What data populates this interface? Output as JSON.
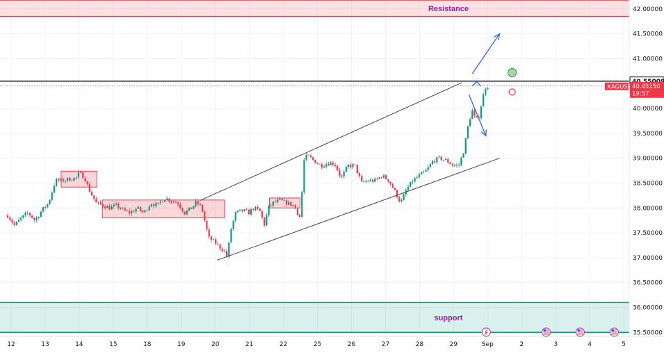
{
  "chart_data": {
    "type": "candlestick",
    "symbol": "XAGUSD",
    "y_axis": {
      "range": [
        35.42,
        42.18
      ],
      "ticks": [
        "42.00000",
        "41.50000",
        "41.00000",
        "40.50000",
        "40.00000",
        "39.50000",
        "39.00000",
        "38.50000",
        "38.00000",
        "37.50000",
        "37.00000",
        "36.50000",
        "36.00000",
        "35.50000"
      ],
      "tick_values": [
        42.0,
        41.5,
        41.0,
        40.5,
        40.0,
        39.5,
        39.0,
        38.5,
        38.0,
        37.5,
        37.0,
        36.5,
        36.0,
        35.5
      ]
    },
    "x_axis": {
      "labels": [
        "12",
        "13",
        "14",
        "15",
        "18",
        "19",
        "20",
        "21",
        "22",
        "25",
        "26",
        "27",
        "28",
        "29",
        "Sep",
        "2",
        "3",
        "4",
        "5"
      ],
      "label_index": [
        0,
        1,
        2,
        3,
        4,
        5,
        6,
        7,
        8,
        9,
        10,
        11,
        12,
        13,
        14,
        15,
        16,
        17,
        18
      ]
    },
    "zones": [
      {
        "label": "Resistance",
        "low": 41.85,
        "high": 42.18,
        "color": "#f23645"
      },
      {
        "label": "support",
        "low": 35.5,
        "high": 36.1,
        "color": "#089981"
      }
    ],
    "horizontal_line": {
      "value": 40.55009,
      "label": "40.55009",
      "color": "#131722"
    },
    "current_price": {
      "value": 40.4515,
      "symbol": "XAGUSD",
      "price_label": "40.45150",
      "countdown": "19:57",
      "color": "#f23645"
    },
    "channel": {
      "upper": [
        {
          "x": 5.55,
          "y": 38.15
        },
        {
          "x": 13.25,
          "y": 40.52
        }
      ],
      "lower": [
        {
          "x": 6.05,
          "y": 36.95
        },
        {
          "x": 14.35,
          "y": 39.0
        }
      ]
    },
    "consolidation_boxes": [
      {
        "x0": 1.47,
        "x1": 2.52,
        "low": 38.42,
        "high": 38.74
      },
      {
        "x0": 2.68,
        "x1": 6.27,
        "low": 37.8,
        "high": 38.16
      },
      {
        "x0": 7.59,
        "x1": 8.49,
        "low": 38.0,
        "high": 38.2
      }
    ],
    "forecast_arrows": [
      {
        "from": {
          "x": 13.55,
          "y": 40.7
        },
        "to": {
          "x": 14.35,
          "y": 41.5
        }
      },
      {
        "from": {
          "x": 13.45,
          "y": 40.28
        },
        "to": {
          "x": 13.95,
          "y": 39.45
        }
      }
    ],
    "chevron": {
      "x0": 13.55,
      "x1": 13.8,
      "y_base": 40.45,
      "y_peak": 40.54
    },
    "markers": [
      {
        "type": "circle-green",
        "x": 14.72,
        "y": 40.72
      },
      {
        "type": "circle-red",
        "x": 14.72,
        "y": 40.33
      }
    ],
    "event_icons": [
      {
        "type": "lightning",
        "x": 13.96
      },
      {
        "type": "us-flag",
        "x": 15.72
      },
      {
        "type": "us-flag",
        "x": 16.72
      },
      {
        "type": "us-flag",
        "x": 17.72
      }
    ],
    "price_path": [
      [
        -0.1,
        37.85
      ],
      [
        0.1,
        37.65
      ],
      [
        0.3,
        37.8
      ],
      [
        0.5,
        37.9
      ],
      [
        0.7,
        37.75
      ],
      [
        0.9,
        37.95
      ],
      [
        1.1,
        38.1
      ],
      [
        1.3,
        38.55
      ],
      [
        1.5,
        38.55
      ],
      [
        1.7,
        38.58
      ],
      [
        1.9,
        38.6
      ],
      [
        2.0,
        38.7
      ],
      [
        2.15,
        38.62
      ],
      [
        2.3,
        38.35
      ],
      [
        2.5,
        38.1
      ],
      [
        2.7,
        38.05
      ],
      [
        2.9,
        38.0
      ],
      [
        3.1,
        38.05
      ],
      [
        3.3,
        37.95
      ],
      [
        3.5,
        37.9
      ],
      [
        3.7,
        38.0
      ],
      [
        3.9,
        37.9
      ],
      [
        4.1,
        38.1
      ],
      [
        4.3,
        38.05
      ],
      [
        4.5,
        38.2
      ],
      [
        4.7,
        38.15
      ],
      [
        4.9,
        38.1
      ],
      [
        5.1,
        37.9
      ],
      [
        5.3,
        38.0
      ],
      [
        5.45,
        38.12
      ],
      [
        5.6,
        38.0
      ],
      [
        5.8,
        37.4
      ],
      [
        6.0,
        37.3
      ],
      [
        6.15,
        37.2
      ],
      [
        6.25,
        37.15
      ],
      [
        6.35,
        37.0
      ],
      [
        6.45,
        37.55
      ],
      [
        6.6,
        37.9
      ],
      [
        6.8,
        37.95
      ],
      [
        7.0,
        37.9
      ],
      [
        7.1,
        38.0
      ],
      [
        7.3,
        37.95
      ],
      [
        7.45,
        37.65
      ],
      [
        7.55,
        38.0
      ],
      [
        7.7,
        38.1
      ],
      [
        7.9,
        38.15
      ],
      [
        8.1,
        38.1
      ],
      [
        8.3,
        38.05
      ],
      [
        8.5,
        37.8
      ],
      [
        8.6,
        38.95
      ],
      [
        8.7,
        39.05
      ],
      [
        8.9,
        38.95
      ],
      [
        9.1,
        38.85
      ],
      [
        9.3,
        38.9
      ],
      [
        9.5,
        38.9
      ],
      [
        9.7,
        38.6
      ],
      [
        9.9,
        38.85
      ],
      [
        10.1,
        38.85
      ],
      [
        10.3,
        38.5
      ],
      [
        10.5,
        38.55
      ],
      [
        10.7,
        38.55
      ],
      [
        10.9,
        38.65
      ],
      [
        11.1,
        38.55
      ],
      [
        11.3,
        38.3
      ],
      [
        11.45,
        38.1
      ],
      [
        11.6,
        38.35
      ],
      [
        11.8,
        38.55
      ],
      [
        12.0,
        38.65
      ],
      [
        12.2,
        38.75
      ],
      [
        12.4,
        38.95
      ],
      [
        12.6,
        39.0
      ],
      [
        12.8,
        38.95
      ],
      [
        13.0,
        38.85
      ],
      [
        13.15,
        38.85
      ],
      [
        13.3,
        39.15
      ],
      [
        13.45,
        39.75
      ],
      [
        13.55,
        39.95
      ],
      [
        13.65,
        39.75
      ],
      [
        13.75,
        39.85
      ],
      [
        13.85,
        40.2
      ],
      [
        13.95,
        40.45
      ],
      [
        14.05,
        40.45
      ]
    ]
  }
}
